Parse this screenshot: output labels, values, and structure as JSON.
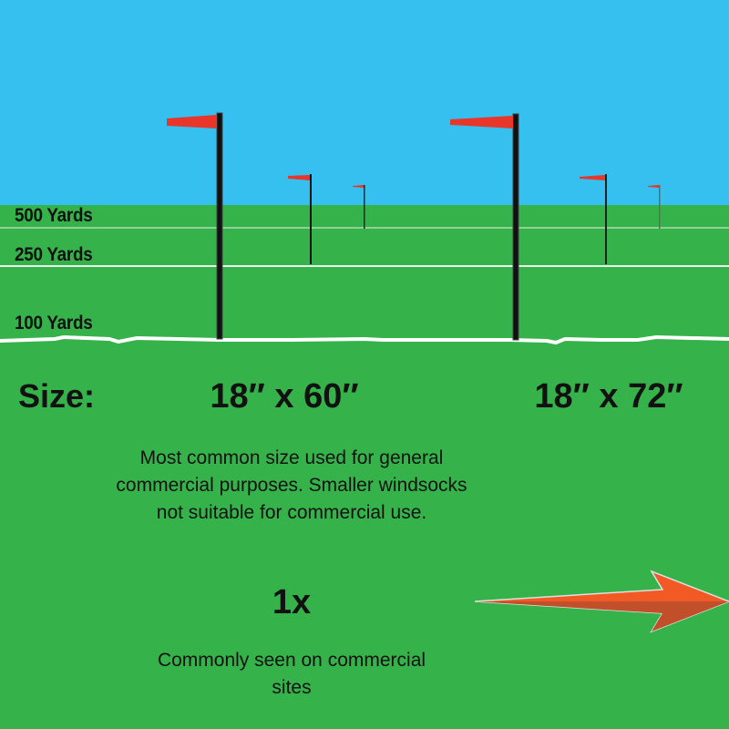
{
  "distances": [
    "500 Yards",
    "250 Yards",
    "100 Yards"
  ],
  "size_label": "Size:",
  "windsocks": [
    {
      "size": "18″ x 60″",
      "description": "Most common size used for general commercial purposes. Smaller windsocks not suitable for commercial use.",
      "multiplier": "1x",
      "note": "Commonly seen on commercial sites"
    },
    {
      "size": "18″ x 72″"
    }
  ],
  "colors": {
    "sky": "#35c0ef",
    "grass": "#35b34a",
    "windsock": "#e8362b",
    "arrow": "#f15a24",
    "arrow_shade": "#c1502a"
  },
  "icons": [
    "windsock-pole-icon",
    "arrow-right-icon"
  ]
}
